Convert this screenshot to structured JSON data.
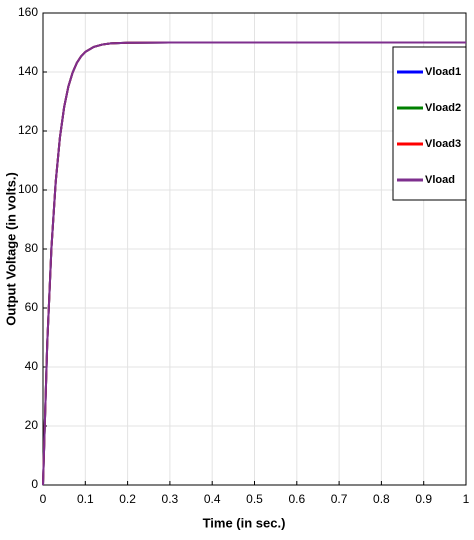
{
  "chart_data": {
    "type": "line",
    "x_label": "Time (in sec.)",
    "y_label": "Output Voltage (in volts.)",
    "x": [
      0,
      0.01,
      0.02,
      0.03,
      0.04,
      0.05,
      0.06,
      0.07,
      0.08,
      0.09,
      0.1,
      0.12,
      0.14,
      0.16,
      0.2,
      0.3,
      0.4,
      0.5,
      0.6,
      0.7,
      0.8,
      0.9,
      1
    ],
    "series": [
      {
        "name": "Vload1",
        "color": "#0000ff",
        "values": [
          0,
          47.9,
          80.5,
          102.7,
          117.8,
          128.1,
          135.1,
          139.8,
          143.1,
          145.3,
          146.8,
          148.5,
          149.3,
          149.7,
          149.9,
          150,
          150,
          150,
          150,
          150,
          150,
          150,
          150
        ]
      },
      {
        "name": "Vload2",
        "color": "#008000",
        "values": [
          0,
          47.9,
          80.5,
          102.7,
          117.8,
          128.1,
          135.1,
          139.8,
          143.1,
          145.3,
          146.8,
          148.5,
          149.3,
          149.7,
          149.9,
          150,
          150,
          150,
          150,
          150,
          150,
          150,
          150
        ]
      },
      {
        "name": "Vload3",
        "color": "#ff0000",
        "values": [
          0,
          47.9,
          80.5,
          102.7,
          117.8,
          128.1,
          135.1,
          139.8,
          143.1,
          145.3,
          146.8,
          148.5,
          149.3,
          149.7,
          149.9,
          150,
          150,
          150,
          150,
          150,
          150,
          150,
          150
        ]
      },
      {
        "name": "Vload",
        "color": "#7e2f8e",
        "values": [
          0,
          47.9,
          80.5,
          102.7,
          117.8,
          128.1,
          135.1,
          139.8,
          143.1,
          145.3,
          146.8,
          148.5,
          149.3,
          149.7,
          149.9,
          150,
          150,
          150,
          150,
          150,
          150,
          150,
          150
        ]
      }
    ],
    "xlim": [
      0,
      1
    ],
    "xticks": [
      0,
      0.1,
      0.2,
      0.3,
      0.4,
      0.5,
      0.6,
      0.7,
      0.8,
      0.9,
      1
    ],
    "ylim": [
      0,
      160
    ],
    "yticks": [
      0,
      20,
      40,
      60,
      80,
      100,
      120,
      140,
      160
    ],
    "grid": true,
    "legend": "upper right"
  }
}
